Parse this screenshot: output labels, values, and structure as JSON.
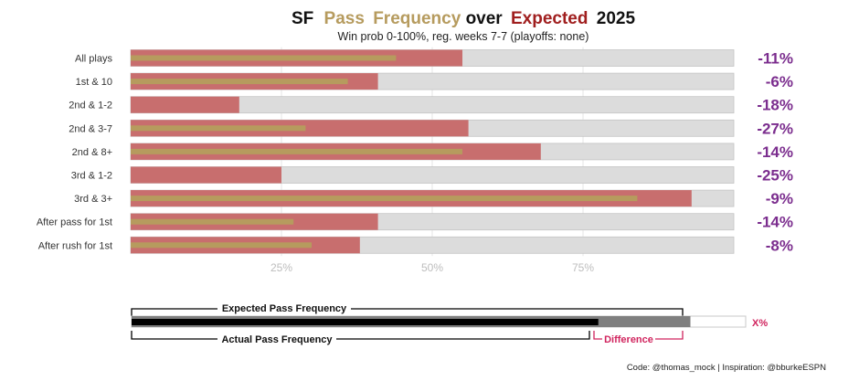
{
  "colors": {
    "pass": "#b69b5e",
    "expected": "#a01f1f",
    "expected_bar": "#c86e6e",
    "actual_bar": "#b69b5e",
    "track": "#dcdcdc",
    "diff_text": "#7b2d8e",
    "legend_black": "#000000",
    "legend_grey": "#7f7f7f",
    "legend_red": "#d0245e"
  },
  "title": {
    "prefix": "SF",
    "pass": "Pass",
    "frequency": "Frequency",
    "over": "over",
    "expected": "Expected",
    "year": "2025"
  },
  "subtitle": "Win prob 0-100%, reg. weeks 7-7 (playoffs: none)",
  "chart_data": {
    "type": "bar",
    "orientation": "horizontal",
    "categories": [
      "All plays",
      "1st & 10",
      "2nd & 1-2",
      "2nd & 3-7",
      "2nd & 8+",
      "3rd & 1-2",
      "3rd & 3+",
      "After pass for 1st",
      "After rush for 1st"
    ],
    "series": [
      {
        "name": "Expected Pass Frequency",
        "values": [
          55,
          41,
          18,
          56,
          68,
          25,
          93,
          41,
          38
        ]
      },
      {
        "name": "Actual Pass Frequency",
        "values": [
          44,
          36,
          null,
          29,
          55,
          null,
          84,
          27,
          30
        ]
      }
    ],
    "differences": [
      "-11%",
      "-6%",
      "-18%",
      "-27%",
      "-14%",
      "-25%",
      "-9%",
      "-14%",
      "-8%"
    ],
    "x_ticks": [
      25,
      50,
      75
    ],
    "x_tick_labels": [
      "25%",
      "50%",
      "75%"
    ],
    "xlim": [
      0,
      100
    ],
    "grid": true
  },
  "legend": {
    "expected_label": "Expected Pass Frequency",
    "actual_label": "Actual Pass Frequency",
    "difference_label": "Difference",
    "x_label": "X%",
    "actual_value": 76,
    "expected_value": 91,
    "track_value": 100
  },
  "caption": "Code: @thomas_mock | Inspiration: @bburkeESPN"
}
